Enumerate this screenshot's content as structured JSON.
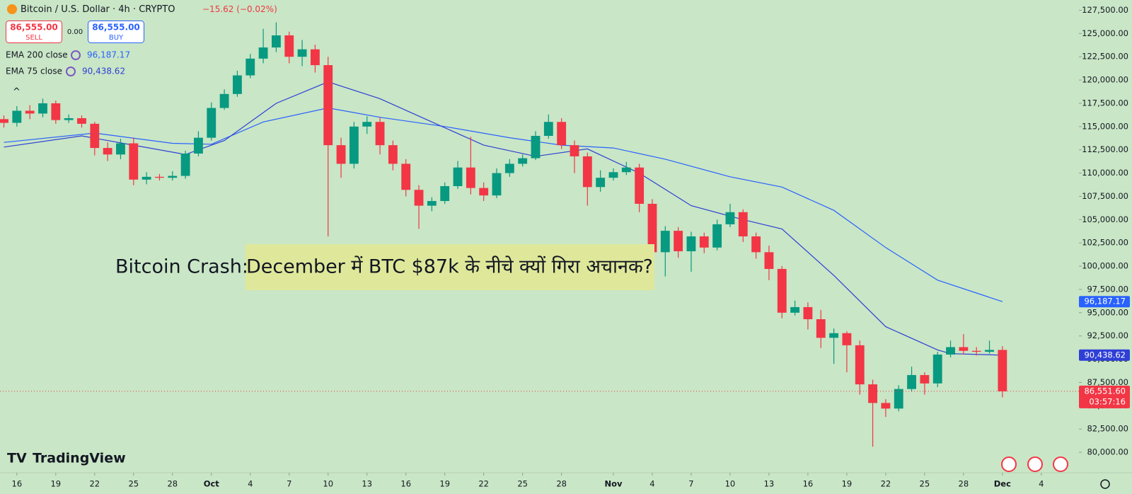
{
  "chart_data": {
    "type": "candlestick",
    "symbol": "Bitcoin / U.S. Dollar · 4h · CRYPTO",
    "change": "−15.62 (−0.02%)",
    "sell": {
      "price": "86,555.00",
      "label": "SELL"
    },
    "spread": "0.00",
    "buy": {
      "price": "86,555.00",
      "label": "BUY"
    },
    "headline": {
      "lead": "Bitcoin Crash:",
      "highlight": "December में BTC $87k के नीचे क्यों गिरा अचानक?"
    },
    "brand": "TradingView",
    "countdown": "03:57:16",
    "up_color": "#089981",
    "down_color": "#f23645",
    "candles": [
      [
        115800,
        116200,
        114900,
        115400
      ],
      [
        115400,
        117200,
        115000,
        116700
      ],
      [
        116700,
        117300,
        115800,
        116400
      ],
      [
        116400,
        118000,
        116000,
        117500
      ],
      [
        117500,
        117800,
        115300,
        115700
      ],
      [
        115700,
        116300,
        115400,
        115900
      ],
      [
        115900,
        116200,
        114900,
        115300
      ],
      [
        115300,
        115500,
        111900,
        112700
      ],
      [
        112700,
        113300,
        111300,
        112000
      ],
      [
        112000,
        113700,
        111500,
        113200
      ],
      [
        113200,
        113800,
        108700,
        109300
      ],
      [
        109300,
        110100,
        108800,
        109600
      ],
      [
        109600,
        109900,
        109200,
        109500
      ],
      [
        109500,
        110200,
        109200,
        109700
      ],
      [
        109700,
        112400,
        109400,
        112100
      ],
      [
        112100,
        114500,
        111800,
        113800
      ],
      [
        113800,
        117600,
        113500,
        117000
      ],
      [
        117000,
        119000,
        116800,
        118500
      ],
      [
        118500,
        121000,
        118200,
        120500
      ],
      [
        120500,
        122800,
        120200,
        122300
      ],
      [
        122300,
        125500,
        121800,
        123500
      ],
      [
        123500,
        126200,
        123000,
        124800
      ],
      [
        124800,
        125200,
        121800,
        122500
      ],
      [
        122500,
        124300,
        121500,
        123300
      ],
      [
        123300,
        123800,
        120800,
        121600
      ],
      [
        121600,
        122500,
        103200,
        113000
      ],
      [
        113000,
        113800,
        109500,
        111000
      ],
      [
        111000,
        115500,
        110500,
        115000
      ],
      [
        115000,
        116100,
        114200,
        115500
      ],
      [
        115500,
        116000,
        112000,
        113000
      ],
      [
        113000,
        113500,
        110300,
        111000
      ],
      [
        111000,
        111500,
        107500,
        108200
      ],
      [
        108200,
        108700,
        104000,
        106500
      ],
      [
        106500,
        107400,
        105900,
        107000
      ],
      [
        107000,
        109000,
        106700,
        108600
      ],
      [
        108600,
        111300,
        108300,
        110600
      ],
      [
        110600,
        113900,
        107700,
        108400
      ],
      [
        108400,
        109000,
        107000,
        107600
      ],
      [
        107600,
        110500,
        107300,
        110000
      ],
      [
        110000,
        111500,
        109600,
        111000
      ],
      [
        111000,
        112000,
        110700,
        111600
      ],
      [
        111600,
        114500,
        111400,
        114000
      ],
      [
        114000,
        116300,
        113700,
        115500
      ],
      [
        115500,
        115900,
        112600,
        113000
      ],
      [
        113000,
        113500,
        110000,
        111800
      ],
      [
        111800,
        112200,
        106500,
        108500
      ],
      [
        108500,
        110300,
        108000,
        109500
      ],
      [
        109500,
        110500,
        109200,
        110100
      ],
      [
        110100,
        111200,
        109800,
        110600
      ],
      [
        110600,
        111000,
        105800,
        106700
      ],
      [
        106700,
        107200,
        100800,
        101500
      ],
      [
        101500,
        104300,
        98900,
        103800
      ],
      [
        103800,
        104200,
        100900,
        101600
      ],
      [
        101600,
        103700,
        99400,
        103200
      ],
      [
        103200,
        103600,
        101400,
        102000
      ],
      [
        102000,
        105000,
        101700,
        104500
      ],
      [
        104500,
        106700,
        104200,
        105800
      ],
      [
        105800,
        106100,
        102600,
        103200
      ],
      [
        103200,
        103600,
        100800,
        101500
      ],
      [
        101500,
        102200,
        98500,
        99700
      ],
      [
        99700,
        100000,
        94400,
        95000
      ],
      [
        95000,
        96300,
        94700,
        95600
      ],
      [
        95600,
        96100,
        93200,
        94300
      ],
      [
        94300,
        95300,
        91200,
        92300
      ],
      [
        92300,
        93300,
        89500,
        92800
      ],
      [
        92800,
        93000,
        88600,
        91500
      ],
      [
        91500,
        92000,
        86200,
        87300
      ],
      [
        87300,
        87800,
        80600,
        85300
      ],
      [
        85300,
        85700,
        83800,
        84700
      ],
      [
        84700,
        87200,
        84400,
        86800
      ],
      [
        86800,
        89200,
        86500,
        88300
      ],
      [
        88300,
        88600,
        86200,
        87400
      ],
      [
        87400,
        90800,
        87000,
        90500
      ],
      [
        90500,
        92000,
        90200,
        91300
      ],
      [
        91300,
        92700,
        90500,
        90900
      ],
      [
        90900,
        91300,
        90400,
        90800
      ],
      [
        90800,
        92000,
        90600,
        91000
      ],
      [
        91000,
        91400,
        85900,
        86550
      ]
    ],
    "series": [
      {
        "name": "EMA 200 close",
        "color": "#2962ff",
        "last": "96,187.17",
        "x": [
          0,
          7,
          13,
          16,
          20,
          25,
          29,
          34,
          39,
          43,
          47,
          51,
          56,
          60,
          64,
          68,
          72,
          77
        ],
        "values": [
          113300,
          114300,
          113200,
          113100,
          115500,
          117000,
          116000,
          115000,
          113800,
          113000,
          112700,
          111500,
          109600,
          108500,
          106000,
          102000,
          98500,
          96187
        ]
      },
      {
        "name": "EMA 75 close",
        "color": "#2f3fd6",
        "last": "90,438.62",
        "x": [
          0,
          6,
          10,
          14,
          17,
          21,
          25,
          29,
          33,
          37,
          41,
          45,
          49,
          53,
          57,
          60,
          64,
          68,
          72,
          73,
          77
        ],
        "values": [
          112800,
          114000,
          113000,
          112000,
          113500,
          117500,
          119800,
          118000,
          115500,
          113000,
          111800,
          112600,
          110000,
          106500,
          105000,
          104000,
          99000,
          93500,
          91000,
          90600,
          90438
        ]
      }
    ],
    "price_tags": [
      {
        "value": 96187.17,
        "label": "96,187.17",
        "color": "#2962ff"
      },
      {
        "value": 90438.62,
        "label": "90,438.62",
        "color": "#2f3fd6"
      },
      {
        "value": 86551.6,
        "label": "86,551.60",
        "color": "#f23645"
      }
    ],
    "ylim": [
      77800,
      128600
    ],
    "yticks": [
      {
        "value": 80000,
        "label": "80,000.00"
      },
      {
        "value": 82500,
        "label": "82,500.00"
      },
      {
        "value": 85000,
        "label": "85,000.00"
      },
      {
        "value": 87500,
        "label": "87,500.00"
      },
      {
        "value": 90000,
        "label": "90,000.00"
      },
      {
        "value": 92500,
        "label": "92,500.00"
      },
      {
        "value": 95000,
        "label": "95,000.00"
      },
      {
        "value": 97500,
        "label": "97,500.00"
      },
      {
        "value": 100000,
        "label": "100,000.00"
      },
      {
        "value": 102500,
        "label": "102,500.00"
      },
      {
        "value": 105000,
        "label": "105,000.00"
      },
      {
        "value": 107500,
        "label": "107,500.00"
      },
      {
        "value": 110000,
        "label": "110,000.00"
      },
      {
        "value": 112500,
        "label": "112,500.00"
      },
      {
        "value": 115000,
        "label": "115,000.00"
      },
      {
        "value": 117500,
        "label": "117,500.00"
      },
      {
        "value": 120000,
        "label": "120,000.00"
      },
      {
        "value": 122500,
        "label": "122,500.00"
      },
      {
        "value": 125000,
        "label": "125,000.00"
      },
      {
        "value": 127500,
        "label": "127,500.00"
      }
    ],
    "xlim": [
      -0.3,
      82.9
    ],
    "xticks": [
      {
        "value": 1,
        "label": "16"
      },
      {
        "value": 4,
        "label": "19"
      },
      {
        "value": 7,
        "label": "22"
      },
      {
        "value": 10,
        "label": "25"
      },
      {
        "value": 13,
        "label": "28"
      },
      {
        "value": 16,
        "label": "Oct"
      },
      {
        "value": 19,
        "label": "4"
      },
      {
        "value": 22,
        "label": "7"
      },
      {
        "value": 25,
        "label": "10"
      },
      {
        "value": 28,
        "label": "13"
      },
      {
        "value": 31,
        "label": "16"
      },
      {
        "value": 34,
        "label": "19"
      },
      {
        "value": 37,
        "label": "22"
      },
      {
        "value": 40,
        "label": "25"
      },
      {
        "value": 43,
        "label": "28"
      },
      {
        "value": 47,
        "label": "Nov"
      },
      {
        "value": 50,
        "label": "4"
      },
      {
        "value": 53,
        "label": "7"
      },
      {
        "value": 56,
        "label": "10"
      },
      {
        "value": 59,
        "label": "13"
      },
      {
        "value": 62,
        "label": "16"
      },
      {
        "value": 65,
        "label": "19"
      },
      {
        "value": 68,
        "label": "22"
      },
      {
        "value": 71,
        "label": "25"
      },
      {
        "value": 74,
        "label": "28"
      },
      {
        "value": 77,
        "label": "Dec"
      },
      {
        "value": 80,
        "label": "4"
      }
    ]
  }
}
